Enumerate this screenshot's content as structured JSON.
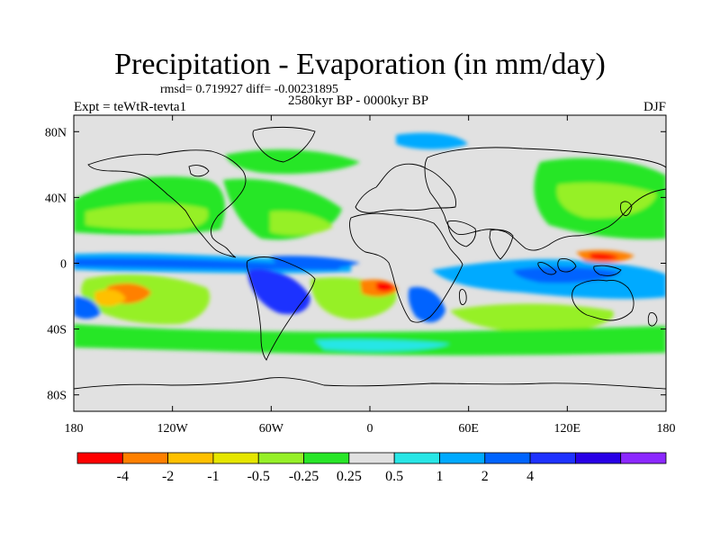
{
  "title": "Precipitation - Evaporation (in mm/day)",
  "stats_text": "rmsd= 0.719927 diff= -0.00231895",
  "left_label": "Expt = teWtR-tevta1",
  "center_label": "2580kyr BP - 0000kyr BP",
  "right_label": "DJF",
  "map": {
    "projection": "cylindrical-equidistant",
    "lon_range": [
      -180,
      180
    ],
    "lat_range": [
      -90,
      90
    ],
    "land_color": "#e1e1e1",
    "coastline_color": "#000000",
    "x_ticks": [
      {
        "lon": -180,
        "label": "180"
      },
      {
        "lon": -120,
        "label": "120W"
      },
      {
        "lon": -60,
        "label": "60W"
      },
      {
        "lon": 0,
        "label": "0"
      },
      {
        "lon": 60,
        "label": "60E"
      },
      {
        "lon": 120,
        "label": "120E"
      },
      {
        "lon": 180,
        "label": "180"
      }
    ],
    "y_ticks": [
      {
        "lat": 80,
        "label": "80N"
      },
      {
        "lat": 40,
        "label": "40N"
      },
      {
        "lat": 0,
        "label": "0"
      },
      {
        "lat": -40,
        "label": "40S"
      },
      {
        "lat": -80,
        "label": "80S"
      }
    ]
  },
  "colorbar": {
    "colors": [
      "#ff0000",
      "#ff8000",
      "#ffc000",
      "#e6e600",
      "#96f028",
      "#28e628",
      "#e1e1e1",
      "#28e6e6",
      "#00aaff",
      "#0064ff",
      "#1e32ff",
      "#2800e6",
      "#8c28ff"
    ],
    "labels": [
      "-4",
      "-2",
      "-1",
      "-0.5",
      "-0.25",
      "0.25",
      "0.5",
      "1",
      "2",
      "4"
    ],
    "label_bins": [
      1,
      2,
      3,
      4,
      5,
      6,
      7,
      8,
      9,
      10
    ]
  }
}
